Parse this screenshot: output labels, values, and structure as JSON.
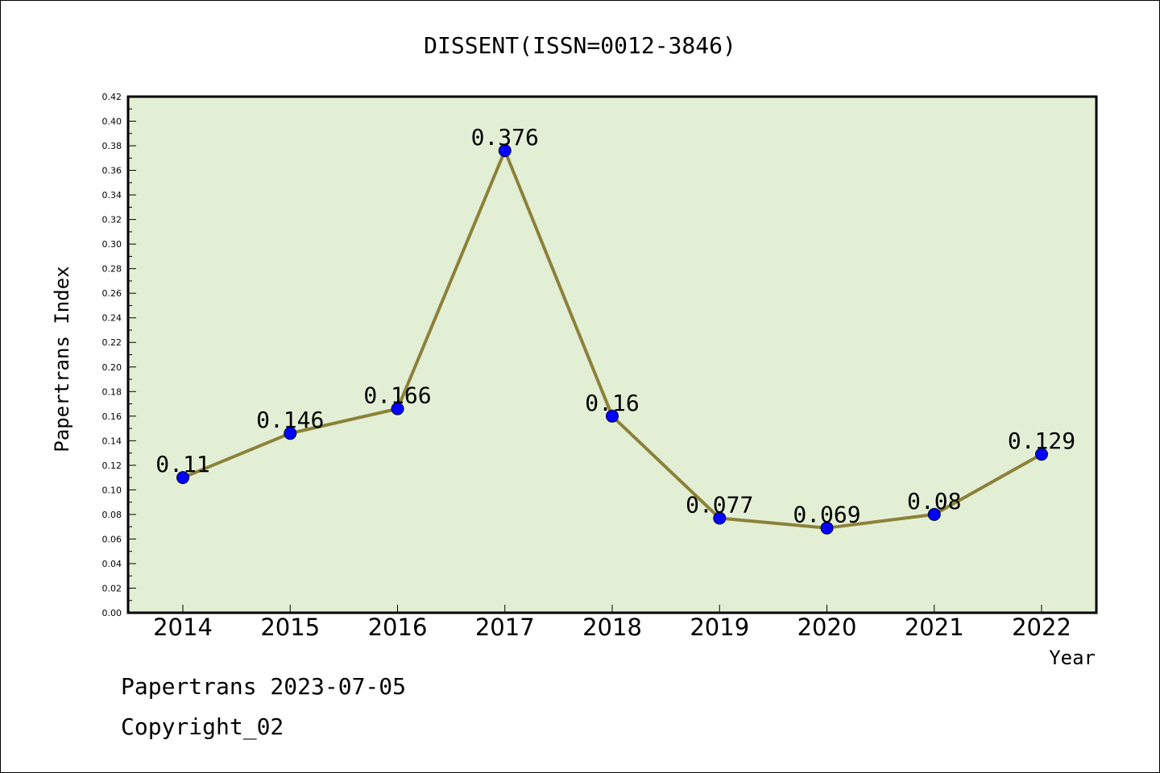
{
  "chart_data": {
    "type": "line",
    "title": "DISSENT(ISSN=0012-3846)",
    "xlabel": "Year",
    "ylabel": "Papertrans Index",
    "categories": [
      "2014",
      "2015",
      "2016",
      "2017",
      "2018",
      "2019",
      "2020",
      "2021",
      "2022"
    ],
    "values": [
      0.11,
      0.146,
      0.166,
      0.376,
      0.16,
      0.077,
      0.069,
      0.08,
      0.129
    ],
    "data_labels": [
      "0.11",
      "0.146",
      "0.166",
      "0.376",
      "0.16",
      "0.077",
      "0.069",
      "0.08",
      "0.129"
    ],
    "ylim": [
      0,
      0.42
    ],
    "yticks": [
      "0.00",
      "0.02",
      "0.04",
      "0.06",
      "0.08",
      "0.10",
      "0.12",
      "0.14",
      "0.16",
      "0.18",
      "0.20",
      "0.22",
      "0.24",
      "0.26",
      "0.28",
      "0.30",
      "0.32",
      "0.34",
      "0.36",
      "0.38",
      "0.40",
      "0.42"
    ],
    "grid": false,
    "colors": {
      "plot_background": "#e2efd5",
      "line": "#8b8139",
      "marker": "#0000ff"
    }
  },
  "footer": {
    "line1": "Papertrans 2023-07-05",
    "line2": "Copyright_02"
  }
}
